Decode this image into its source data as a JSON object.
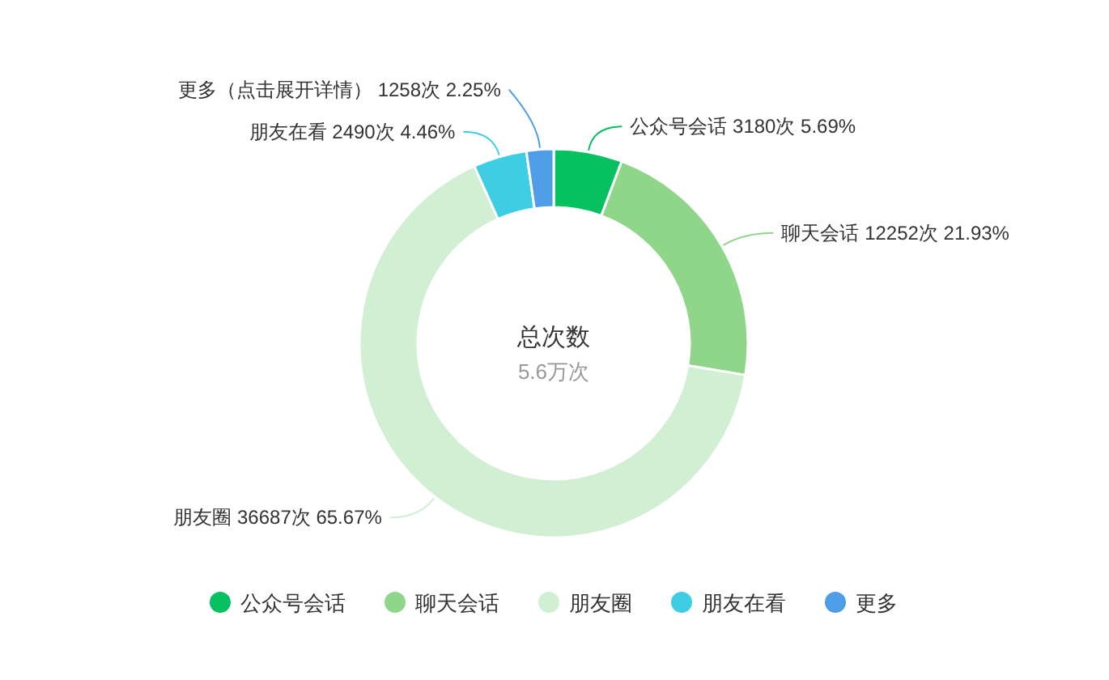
{
  "chart_data": {
    "type": "donut",
    "title": "总次数",
    "subtitle": "5.6万次",
    "categories": [
      "公众号会话",
      "聊天会话",
      "朋友圈",
      "朋友在看",
      "更多"
    ],
    "values": [
      3180,
      12252,
      36687,
      2490,
      1258
    ],
    "colors": [
      "#07c160",
      "#8fd68a",
      "#d1efd2",
      "#3ecde2",
      "#4e9de6"
    ],
    "value_labels": [
      "公众号会话 3180次 5.69%",
      "聊天会话 12252次 21.93%",
      "朋友圈 36687次 65.67%",
      "朋友在看 2490次 4.46%",
      "更多（点击展开详情） 1258次 2.25%"
    ],
    "legend": "bottom"
  }
}
